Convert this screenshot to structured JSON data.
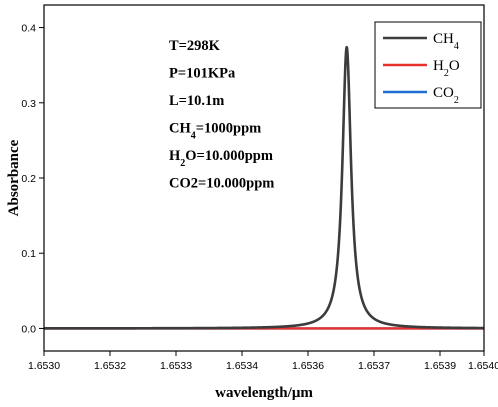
{
  "chart_data": {
    "type": "line",
    "xlabel": "wavelength/μm",
    "ylabel": "Absorbance",
    "xlim": [
      1.653,
      1.654
    ],
    "ylim": [
      -0.03,
      0.43
    ],
    "x_ticks": [
      "1.6530",
      "1.6532",
      "1.6533",
      "1.6534",
      "1.6536",
      "1.6537",
      "1.6539",
      "1.6540"
    ],
    "x_tick_values": [
      1.653,
      1.65315,
      1.6533,
      1.65345,
      1.6536,
      1.65375,
      1.6539,
      1.654
    ],
    "y_ticks": [
      "0.0",
      "0.1",
      "0.2",
      "0.3",
      "0.4"
    ],
    "y_tick_values": [
      0.0,
      0.1,
      0.2,
      0.3,
      0.4
    ],
    "grid": false,
    "legend_position": "top-right",
    "annotations": [
      {
        "id": "T",
        "segments": [
          {
            "t": "T=298K"
          }
        ]
      },
      {
        "id": "P",
        "segments": [
          {
            "t": "P=101KPa"
          }
        ]
      },
      {
        "id": "L",
        "segments": [
          {
            "t": "L=10.1m"
          }
        ]
      },
      {
        "id": "CH4",
        "segments": [
          {
            "t": "CH"
          },
          {
            "t": "4",
            "sub": true
          },
          {
            "t": "=1000ppm"
          }
        ]
      },
      {
        "id": "H2O",
        "segments": [
          {
            "t": "H"
          },
          {
            "t": "2",
            "sub": true
          },
          {
            "t": "O=10.000ppm"
          }
        ]
      },
      {
        "id": "CO2",
        "segments": [
          {
            "t": "CO2=10.000ppm"
          }
        ]
      }
    ],
    "series": [
      {
        "name": "CH4",
        "legend_segments": [
          {
            "t": "CH"
          },
          {
            "t": "4",
            "sub": true
          }
        ],
        "color": "#3c3c3c",
        "peak_center": 1.653688,
        "peak_height": 0.374,
        "half_width": 1.18e-05
      },
      {
        "name": "H2O",
        "legend_segments": [
          {
            "t": "H"
          },
          {
            "t": "2",
            "sub": true
          },
          {
            "t": "O"
          }
        ],
        "color": "#e8312a",
        "baseline": 0.0
      },
      {
        "name": "CO2",
        "legend_segments": [
          {
            "t": "CO"
          },
          {
            "t": "2",
            "sub": true
          }
        ],
        "color": "#1f6ed4",
        "baseline": 0.0
      }
    ]
  }
}
